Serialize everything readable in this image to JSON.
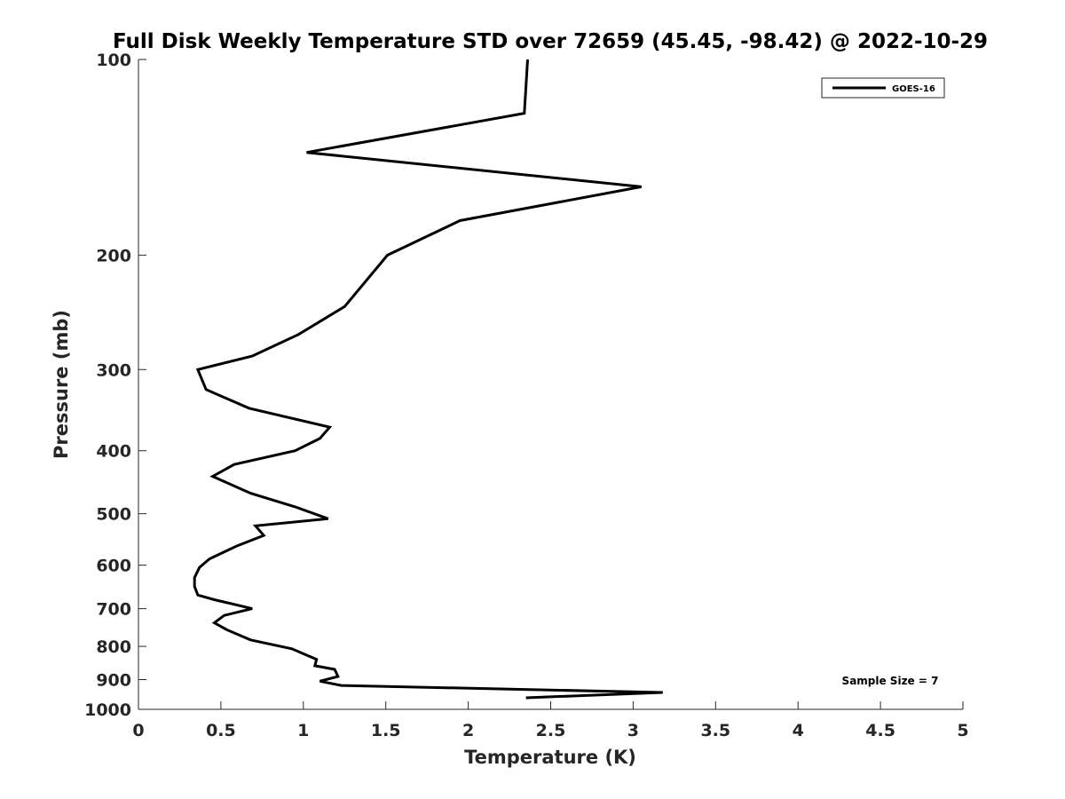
{
  "chart_data": {
    "type": "line",
    "title": "Full Disk Weekly Temperature STD over 72659 (45.45, -98.42) @ 2022-10-29",
    "xlabel": "Temperature (K)",
    "ylabel": "Pressure (mb)",
    "xlim": [
      0,
      5
    ],
    "ylim": [
      100,
      1000
    ],
    "y_scale": "log",
    "y_reversed": true,
    "x_ticks": [
      "0",
      "0.5",
      "1",
      "1.5",
      "2",
      "2.5",
      "3",
      "3.5",
      "4",
      "4.5",
      "5"
    ],
    "x_tick_values": [
      0,
      0.5,
      1,
      1.5,
      2,
      2.5,
      3,
      3.5,
      4,
      4.5,
      5
    ],
    "y_ticks": [
      "100",
      "200",
      "300",
      "400",
      "500",
      "600",
      "700",
      "800",
      "900",
      "1000"
    ],
    "y_tick_values": [
      100,
      200,
      300,
      400,
      500,
      600,
      700,
      800,
      900,
      1000
    ],
    "grid": false,
    "legend_position": "top-right",
    "annotation": "Sample Size = 7",
    "series": [
      {
        "name": "GOES-16",
        "color": "#000000",
        "x": [
          2.36,
          2.34,
          1.02,
          3.05,
          1.95,
          1.51,
          1.25,
          0.97,
          0.69,
          0.36,
          0.41,
          0.67,
          1.16,
          1.1,
          0.95,
          0.58,
          0.45,
          0.68,
          0.95,
          1.15,
          0.71,
          0.76,
          0.6,
          0.43,
          0.37,
          0.34,
          0.34,
          0.36,
          0.46,
          0.69,
          0.52,
          0.46,
          0.54,
          0.68,
          0.93,
          1.08,
          1.07,
          1.19,
          1.21,
          1.1,
          1.23,
          3.18,
          2.35
        ],
        "y": [
          100,
          121,
          139,
          157,
          177,
          200,
          240,
          265,
          286,
          300,
          322,
          344,
          368,
          383,
          400,
          420,
          438,
          465,
          488,
          509,
          522,
          540,
          560,
          587,
          605,
          627,
          647,
          667,
          678,
          700,
          717,
          736,
          755,
          782,
          807,
          838,
          857,
          868,
          890,
          905,
          919,
          942,
          960
        ]
      }
    ]
  }
}
